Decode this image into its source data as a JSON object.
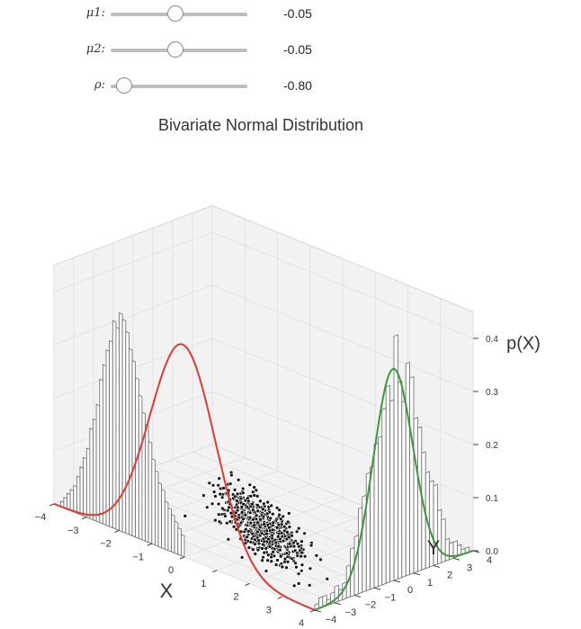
{
  "sliders": [
    {
      "label": "μ1:",
      "value_text": "-0.05",
      "value": -0.05,
      "min": -1,
      "max": 1
    },
    {
      "label": "μ2:",
      "value_text": "-0.05",
      "value": -0.05,
      "min": -1,
      "max": 1
    },
    {
      "label": "ρ:",
      "value_text": "-0.80",
      "value": -0.8,
      "min": -0.95,
      "max": 0.95
    }
  ],
  "chart_data": {
    "type": "3d-histogram-scatter",
    "title": "Bivariate Normal Distribution",
    "xlabel": "X",
    "ylabel": "Y",
    "zlabel": "p(X)",
    "xlim": [
      -4,
      4
    ],
    "ylim": [
      -4,
      4
    ],
    "zlim": [
      0,
      0.45
    ],
    "x_ticks": [
      -4,
      -3,
      -2,
      -1,
      0,
      1,
      2,
      3,
      4
    ],
    "y_ticks": [
      -4,
      -3,
      -2,
      -1,
      0,
      1,
      2,
      3,
      4
    ],
    "z_ticks": [
      0.0,
      0.1,
      0.2,
      0.3,
      0.4
    ],
    "z_tick_labels": [
      "0.0",
      "0.1",
      "0.2",
      "0.3",
      "0.4"
    ],
    "x_marginal_histogram": {
      "bin_centers": [
        -3.95,
        -3.85,
        -3.75,
        -3.65,
        -3.55,
        -3.45,
        -3.35,
        -3.25,
        -3.15,
        -3.05,
        -2.95,
        -2.85,
        -2.75,
        -2.65,
        -2.55,
        -2.45,
        -2.35,
        -2.25,
        -2.15,
        -2.05,
        -1.95,
        -1.85,
        -1.75,
        -1.65,
        -1.55,
        -1.45,
        -1.35,
        -1.25,
        -1.15,
        -1.05,
        -0.95,
        -0.85,
        -0.75,
        -0.65,
        -0.55,
        -0.45,
        -0.35,
        -0.25,
        -0.15,
        -0.05
      ],
      "densities": [
        0.0,
        0.0,
        0.01,
        0.02,
        0.03,
        0.04,
        0.05,
        0.07,
        0.09,
        0.11,
        0.13,
        0.17,
        0.19,
        0.22,
        0.27,
        0.3,
        0.33,
        0.35,
        0.39,
        0.38,
        0.41,
        0.4,
        0.38,
        0.35,
        0.33,
        0.3,
        0.27,
        0.24,
        0.22,
        0.19,
        0.16,
        0.14,
        0.12,
        0.11,
        0.09,
        0.08,
        0.07,
        0.06,
        0.05,
        0.04
      ]
    },
    "x_marginal_curve_color": "#e03a34",
    "y_marginal_histogram": {
      "bin_centers": [
        -3.9,
        -3.7,
        -3.5,
        -3.3,
        -3.1,
        -2.9,
        -2.7,
        -2.5,
        -2.3,
        -2.1,
        -1.9,
        -1.7,
        -1.5,
        -1.3,
        -1.1,
        -0.9,
        -0.7,
        -0.5,
        -0.3,
        -0.1,
        0.1,
        0.3,
        0.5,
        0.7,
        0.9,
        1.1,
        1.3,
        1.5,
        1.7,
        1.9,
        2.1,
        2.3,
        2.5,
        2.7,
        2.9,
        3.1,
        3.3,
        3.5,
        3.7,
        3.9
      ],
      "densities": [
        0.01,
        0.02,
        0.02,
        0.01,
        0.02,
        0.03,
        0.02,
        0.03,
        0.06,
        0.09,
        0.11,
        0.16,
        0.18,
        0.22,
        0.23,
        0.27,
        0.28,
        0.33,
        0.37,
        0.34,
        0.46,
        0.37,
        0.33,
        0.4,
        0.37,
        0.29,
        0.27,
        0.22,
        0.18,
        0.16,
        0.15,
        0.1,
        0.08,
        0.04,
        0.03,
        0.03,
        0.02,
        0.01,
        0.01,
        0.0
      ]
    },
    "y_marginal_curve_color": "#3a9a3a",
    "scatter": {
      "points": 600,
      "mu": [
        -0.05,
        -0.05
      ],
      "rho": -0.8,
      "marker": "black dot, white edge"
    },
    "pane_color": "#f2f2f2",
    "grid": true
  }
}
